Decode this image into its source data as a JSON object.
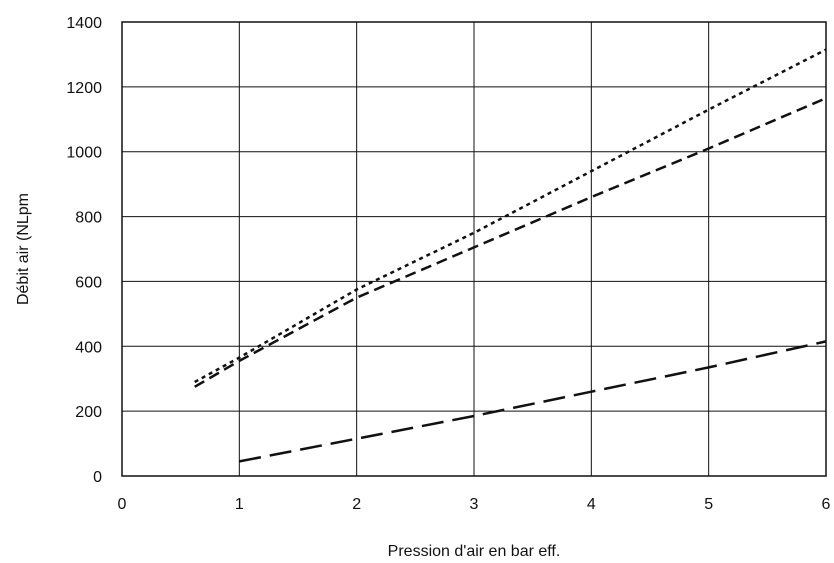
{
  "chart_data": {
    "type": "line",
    "title": "",
    "xlabel": "Pression d'air en bar eff.",
    "ylabel": "Débit air (NLpm",
    "xlim": [
      0,
      6
    ],
    "ylim": [
      0,
      1400
    ],
    "x_ticks": [
      "0",
      "1",
      "2",
      "3",
      "4",
      "5",
      "6"
    ],
    "y_ticks": [
      "0",
      "200",
      "400",
      "600",
      "800",
      "1000",
      "1200",
      "1400"
    ],
    "grid": true,
    "legend": "none",
    "series": [
      {
        "style": "dotted",
        "color": "#111111",
        "x": [
          0.62,
          1.0,
          2.0,
          3.0,
          4.0,
          5.0,
          6.0
        ],
        "y": [
          290,
          365,
          575,
          750,
          940,
          1130,
          1315
        ]
      },
      {
        "style": "dashed",
        "color": "#111111",
        "x": [
          0.62,
          1.0,
          2.0,
          3.0,
          4.0,
          5.0,
          6.0
        ],
        "y": [
          275,
          355,
          550,
          705,
          860,
          1010,
          1165
        ]
      },
      {
        "style": "long-dashed",
        "color": "#111111",
        "x": [
          1.0,
          2.0,
          3.0,
          4.0,
          5.0,
          6.0
        ],
        "y": [
          45,
          115,
          185,
          260,
          335,
          415
        ]
      }
    ]
  }
}
